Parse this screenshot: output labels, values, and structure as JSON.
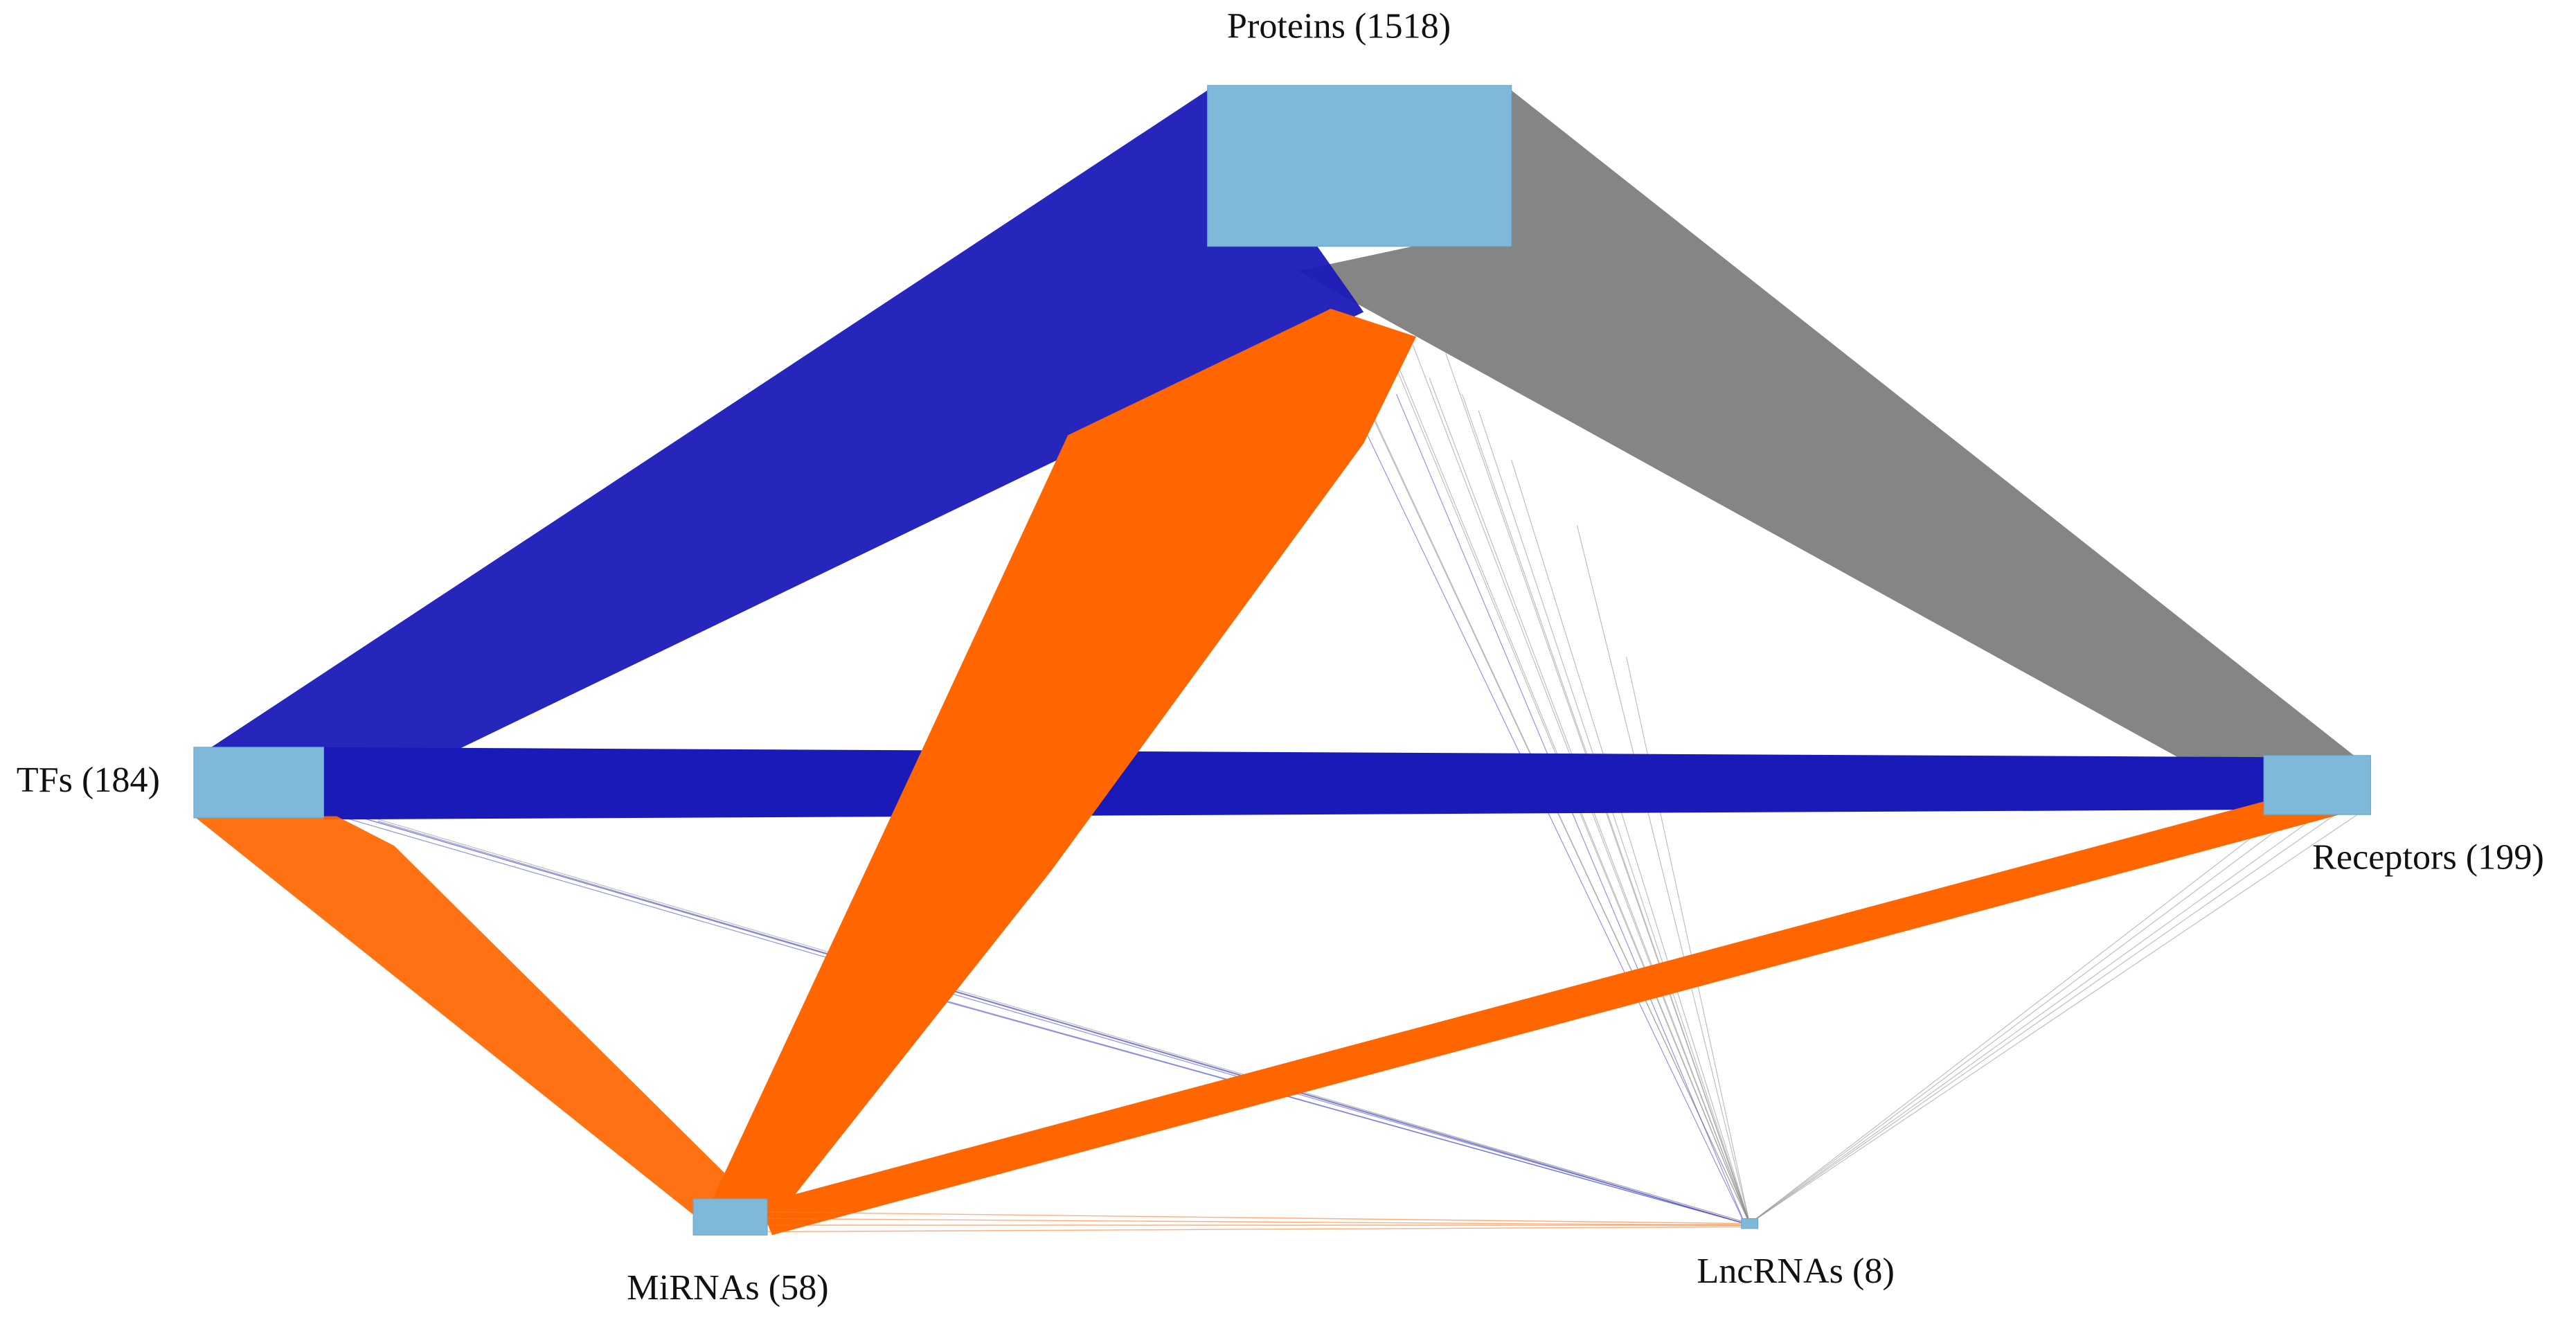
{
  "nodes": [
    {
      "label": "Proteins (1518)"
    },
    {
      "label": "TFs (184)"
    },
    {
      "label": "Receptors (199)"
    },
    {
      "label": "MiRNAs (58)"
    },
    {
      "label": "LncRNAs (8)"
    }
  ]
}
